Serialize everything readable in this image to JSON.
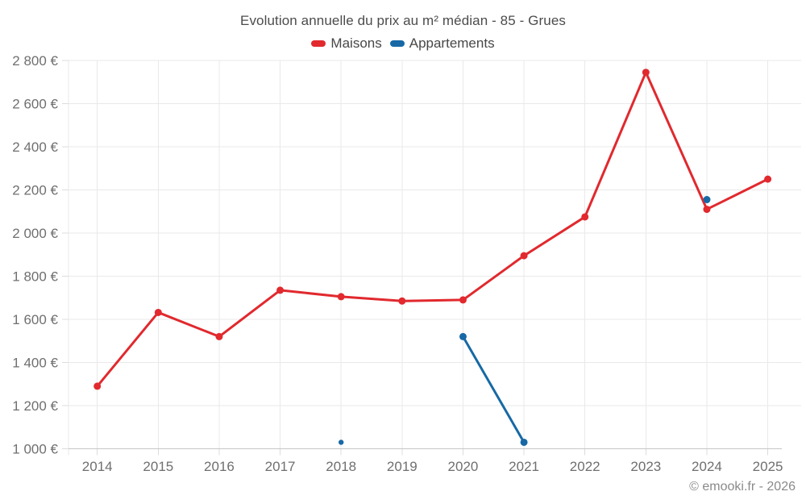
{
  "footer": {
    "attribution": "© emooki.fr - 2026"
  },
  "colors": {
    "background": "#ffffff",
    "grid": "#e9e9e9",
    "tick": "#dcdcdc",
    "axis_line": "#c6c6c6",
    "axis_label": "#6f6f6f",
    "title_text": "#4c4c4c",
    "attribution_text": "#8a8a8a",
    "maisons": "#e1292e",
    "appartements": "#1769a5"
  },
  "chart_data": {
    "type": "line",
    "title": "Evolution annuelle du prix au m² médian - 85 - Grues",
    "xlabel": "",
    "ylabel": "",
    "categories": [
      "2014",
      "2015",
      "2016",
      "2017",
      "2018",
      "2019",
      "2020",
      "2021",
      "2022",
      "2023",
      "2024",
      "2025"
    ],
    "y_axis": {
      "min": 1000,
      "max": 2800,
      "step": 200,
      "unit": "€",
      "tick_labels": [
        "1 000 €",
        "1 200 €",
        "1 400 €",
        "1 600 €",
        "1 800 €",
        "2 000 €",
        "2 200 €",
        "2 400 €",
        "2 600 €",
        "2 800 €"
      ]
    },
    "grid": true,
    "legend_position": "top",
    "series": [
      {
        "name": "Maisons",
        "color": "#e1292e",
        "marker_radius": 4.5,
        "values": [
          1290,
          1632,
          1520,
          1735,
          1705,
          1685,
          1690,
          1895,
          2075,
          2745,
          2110,
          2250
        ]
      },
      {
        "name": "Appartements",
        "color": "#1769a5",
        "marker_radius": 4.5,
        "marker_radius_overrides": {
          "2018": 3.2
        },
        "values": [
          null,
          null,
          null,
          null,
          1030,
          null,
          1520,
          1030,
          null,
          null,
          2155,
          null
        ]
      }
    ]
  }
}
